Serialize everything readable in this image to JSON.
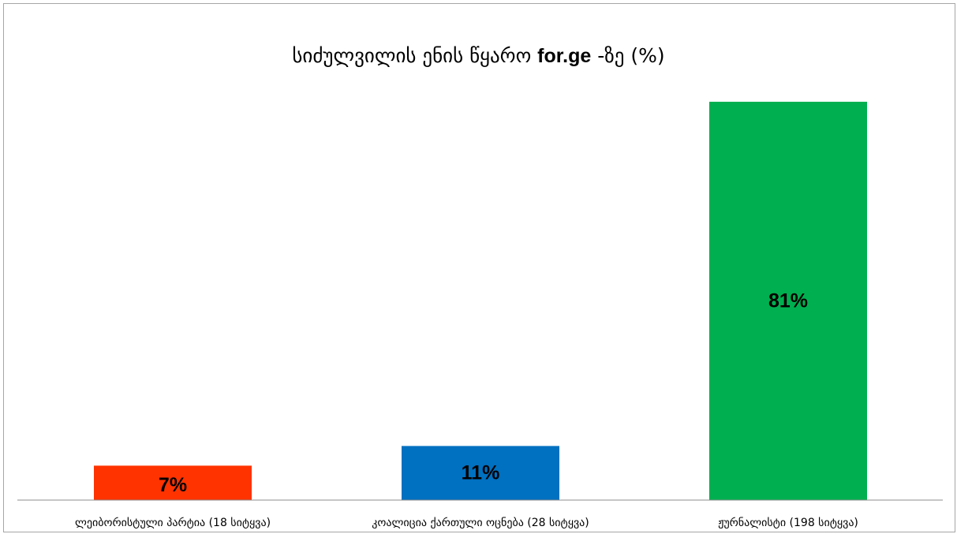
{
  "chart_data": {
    "type": "bar",
    "title": "სიძულვილის ენის წყარო  for.ge -ზე (%)",
    "title_parts": {
      "prefix": "სიძულვილის ენის წყარო ",
      "bold": "for.ge",
      "suffix": " -ზე (%)"
    },
    "categories": [
      "ლეიბორისტული პარტია (18 სიტყვა)",
      "კოალიცია ქართული ოცნება (28 სიტყვა)",
      "ჟურნალისტი (198 სიტყვა)"
    ],
    "values": [
      7,
      11,
      81
    ],
    "data_labels": [
      "7%",
      "11%",
      "81%"
    ],
    "colors": [
      "#ff3300",
      "#0070c0",
      "#00b050"
    ],
    "xlabel": "",
    "ylabel": "",
    "ylim": [
      0,
      100
    ],
    "grid": false,
    "legend": "none"
  }
}
